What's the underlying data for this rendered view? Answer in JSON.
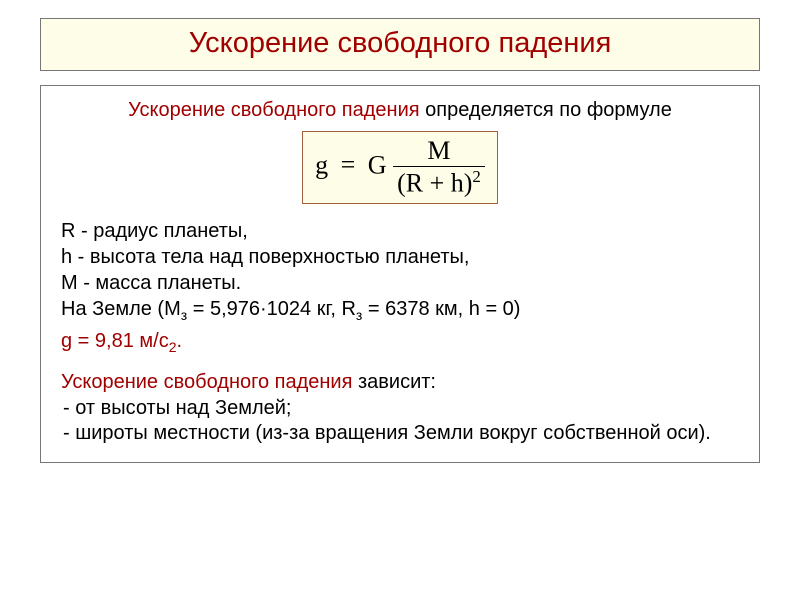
{
  "title": "Ускорение свободного падения",
  "intro_term": "Ускорение свободного падения",
  "intro_rest": " определяется по формуле",
  "formula": {
    "lhs": "g",
    "eq": "=",
    "G": "G",
    "M": "M",
    "R": "R",
    "plus": "+",
    "h": "h",
    "exp": "2"
  },
  "defs": {
    "r_line": "R   -   радиус планеты,",
    "h_line": "h    -    высота тела над поверхностью планеты,",
    "m_line": "М - масса планеты.",
    "earth_prefix": "На Земле (М",
    "earth_sub1": "з",
    "earth_mid1": " = 5,976·1024 кг,  R",
    "earth_sub2": "з",
    "earth_mid2": " = 6378 км, h = 0)",
    "g_prefix": "g = 9,81 м/с",
    "g_exp": "2",
    "g_suffix": "."
  },
  "depends": {
    "term": "Ускорение свободного падения",
    "rest": " зависит:",
    "item1": "от высоты над Землей;",
    "item2": "широты местности  (из-за  вращения Земли вокруг собственной оси)."
  },
  "colors": {
    "accent": "#a00000",
    "box_bg": "#fefee8",
    "box_border": "#777777",
    "formula_border": "#a0603e",
    "text": "#000000"
  }
}
